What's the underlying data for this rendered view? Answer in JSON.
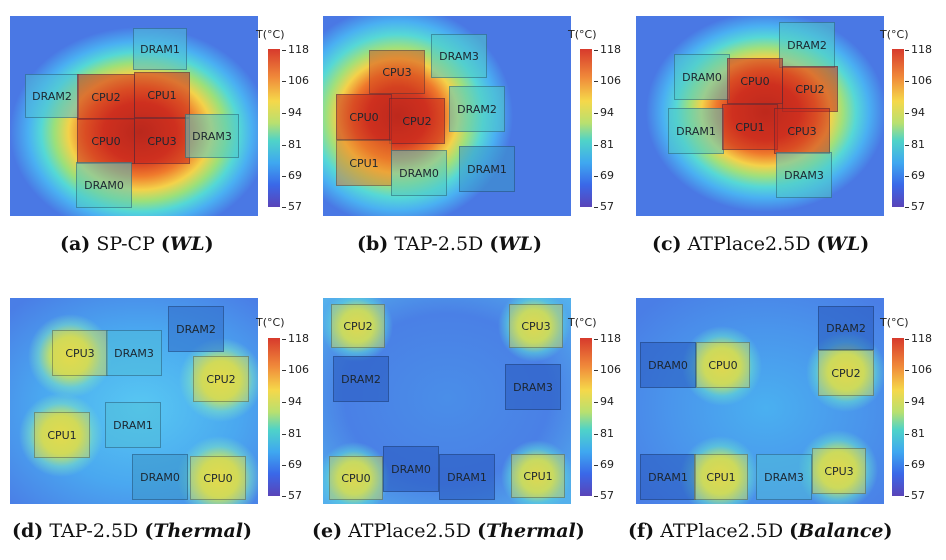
{
  "colorbar": {
    "title": "T(°C)",
    "ticks": [
      "118",
      "106",
      "94",
      "81",
      "69",
      "57"
    ]
  },
  "panels": [
    {
      "label": "(a)",
      "method": "SP-CP",
      "objective": "WL",
      "blocks": {
        "b0": "DRAM1",
        "b1": "DRAM2",
        "b2": "CPU2",
        "b3": "CPU1",
        "b4": "CPU0",
        "b5": "CPU3",
        "b6": "DRAM3",
        "b7": "DRAM0"
      }
    },
    {
      "label": "(b)",
      "method": "TAP-2.5D",
      "objective": "WL",
      "blocks": {
        "b0": "DRAM3",
        "b1": "CPU3",
        "b2": "DRAM2",
        "b3": "CPU0",
        "b4": "CPU2",
        "b5": "CPU1",
        "b6": "DRAM0",
        "b7": "DRAM1"
      }
    },
    {
      "label": "(c)",
      "method": "ATPlace2.5D",
      "objective": "WL",
      "blocks": {
        "b0": "DRAM2",
        "b1": "DRAM0",
        "b2": "CPU0",
        "b3": "CPU2",
        "b4": "DRAM1",
        "b5": "CPU1",
        "b6": "CPU3",
        "b7": "DRAM3"
      }
    },
    {
      "label": "(d)",
      "method": "TAP-2.5D",
      "objective": "Thermal",
      "blocks": {
        "b0": "DRAM2",
        "b1": "CPU3",
        "b2": "DRAM3",
        "b3": "CPU2",
        "b4": "DRAM1",
        "b5": "CPU1",
        "b6": "DRAM0",
        "b7": "CPU0"
      }
    },
    {
      "label": "(e)",
      "method": "ATPlace2.5D",
      "objective": "Thermal",
      "blocks": {
        "b0": "CPU2",
        "b1": "CPU3",
        "b2": "DRAM2",
        "b3": "DRAM3",
        "b4": "CPU0",
        "b5": "DRAM0",
        "b6": "DRAM1",
        "b7": "CPU1"
      }
    },
    {
      "label": "(f)",
      "method": "ATPlace2.5D",
      "objective": "Balance",
      "blocks": {
        "b0": "DRAM2",
        "b1": "DRAM0",
        "b2": "CPU0",
        "b3": "CPU2",
        "b4": "DRAM1",
        "b5": "CPU1",
        "b6": "DRAM3",
        "b7": "CPU3"
      }
    }
  ]
}
